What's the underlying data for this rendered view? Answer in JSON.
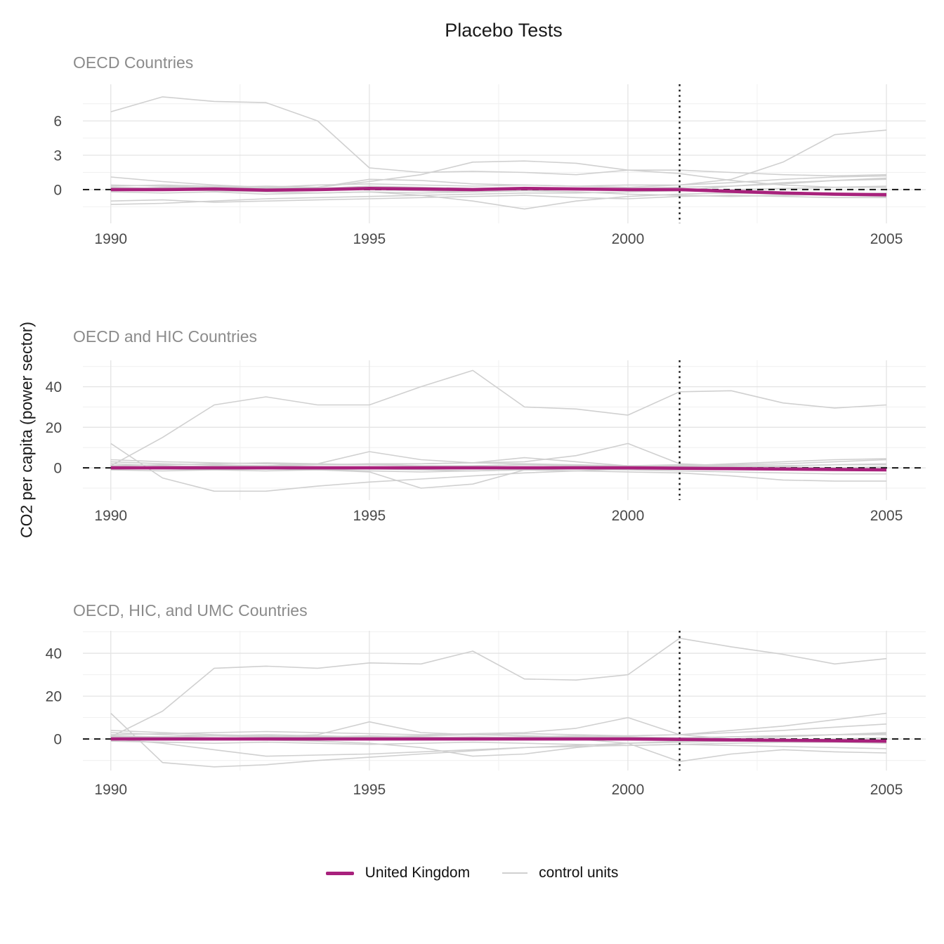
{
  "figure": {
    "title": "Placebo Tests",
    "y_axis_label": "CO2 per capita (power sector)"
  },
  "legend": {
    "items": [
      {
        "label": "United Kingdom",
        "color": "#A8217C"
      },
      {
        "label": "control units",
        "color": "#D0D0D0"
      }
    ]
  },
  "colors": {
    "treated": "#A8217C",
    "control": "#D0D0D0",
    "grid_major": "#E4E4E4",
    "grid_minor": "#F1F1F1",
    "reference_line": "#141414",
    "tick_label": "#4A4A4A",
    "panel_title": "#8B8B8B"
  },
  "chart_data": [
    {
      "type": "line",
      "title": "OECD Countries",
      "xlabel": "",
      "ylabel": "CO2 per capita (power sector)",
      "x": [
        1990,
        1991,
        1992,
        1993,
        1994,
        1995,
        1996,
        1997,
        1998,
        1999,
        2000,
        2001,
        2002,
        2003,
        2004,
        2005
      ],
      "xticks": [
        1990,
        1995,
        2000,
        2005
      ],
      "xticks_minor": [
        1992.5,
        1997.5,
        2002.5
      ],
      "yticks": [
        0,
        3,
        6
      ],
      "yticks_minor": [
        -1.5,
        1.5,
        4.5,
        7.5
      ],
      "xlim": [
        1989.46,
        2005.76
      ],
      "ylim": [
        -2.95,
        9.2
      ],
      "hline_y": 0,
      "vline_x": 2001,
      "grid": true,
      "series": [
        {
          "name": "United Kingdom",
          "role": "treated",
          "values": [
            0.0,
            0.0,
            0.05,
            -0.05,
            0.0,
            0.1,
            0.05,
            0.0,
            0.1,
            0.05,
            0.0,
            0.0,
            -0.15,
            -0.3,
            -0.4,
            -0.45
          ]
        },
        {
          "name": "control 1",
          "role": "control",
          "values": [
            6.8,
            8.1,
            7.7,
            7.6,
            6.0,
            1.9,
            1.5,
            1.6,
            1.5,
            1.3,
            1.7,
            1.4,
            0.8,
            0.4,
            0.2,
            0.2
          ]
        },
        {
          "name": "control 2",
          "role": "control",
          "values": [
            0.3,
            0.4,
            0.3,
            0.2,
            0.4,
            0.5,
            0.4,
            0.3,
            0.4,
            0.3,
            0.4,
            0.4,
            0.9,
            2.4,
            4.8,
            5.2
          ]
        },
        {
          "name": "control 3",
          "role": "control",
          "values": [
            0.2,
            0.1,
            0.2,
            0.1,
            0.2,
            0.7,
            1.3,
            2.4,
            2.5,
            2.3,
            1.7,
            1.7,
            1.5,
            1.3,
            1.2,
            1.3
          ]
        },
        {
          "name": "control 4",
          "role": "control",
          "values": [
            1.1,
            0.7,
            0.4,
            0.2,
            0.1,
            0.0,
            -0.1,
            -0.2,
            -0.1,
            0.0,
            0.1,
            0.2,
            0.3,
            0.5,
            0.8,
            1.0
          ]
        },
        {
          "name": "control 5",
          "role": "control",
          "values": [
            0.1,
            0.0,
            -0.1,
            -0.2,
            -0.3,
            -0.2,
            -0.5,
            -1.0,
            -1.7,
            -1.0,
            -0.6,
            -0.4,
            -0.3,
            -0.4,
            -0.5,
            -0.6
          ]
        },
        {
          "name": "control 6",
          "role": "control",
          "values": [
            -1.0,
            -0.9,
            -1.1,
            -1.0,
            -0.9,
            -0.8,
            -0.7,
            -0.6,
            -0.5,
            -0.7,
            -0.8,
            -0.6,
            -0.5,
            -0.6,
            -0.7,
            -0.7
          ]
        },
        {
          "name": "control 7",
          "role": "control",
          "values": [
            -1.3,
            -1.2,
            -1.0,
            -0.8,
            -0.7,
            -0.6,
            -0.5,
            -0.4,
            -0.3,
            -0.3,
            -0.2,
            -0.1,
            0.0,
            0.1,
            0.2,
            0.3
          ]
        },
        {
          "name": "control 8",
          "role": "control",
          "values": [
            0.4,
            0.3,
            0.2,
            0.3,
            0.2,
            0.9,
            0.8,
            0.5,
            0.4,
            0.3,
            0.2,
            0.4,
            0.6,
            0.9,
            1.1,
            1.2
          ]
        },
        {
          "name": "control 9",
          "role": "control",
          "values": [
            -0.2,
            -0.3,
            -0.2,
            -0.4,
            -0.3,
            -0.2,
            -0.3,
            -0.2,
            -0.1,
            -0.2,
            -0.4,
            -0.5,
            -0.6,
            -0.5,
            -0.4,
            -0.3
          ]
        },
        {
          "name": "control 10",
          "role": "control",
          "values": [
            0.0,
            0.2,
            0.1,
            0.0,
            0.1,
            0.3,
            0.2,
            0.1,
            0.2,
            0.1,
            0.0,
            -0.1,
            0.3,
            0.6,
            0.8,
            0.9
          ]
        }
      ]
    },
    {
      "type": "line",
      "title": "OECD and HIC Countries",
      "xlabel": "",
      "ylabel": "CO2 per capita (power sector)",
      "x": [
        1990,
        1991,
        1992,
        1993,
        1994,
        1995,
        1996,
        1997,
        1998,
        1999,
        2000,
        2001,
        2002,
        2003,
        2004,
        2005
      ],
      "xticks": [
        1990,
        1995,
        2000,
        2005
      ],
      "xticks_minor": [
        1992.5,
        1997.5,
        2002.5
      ],
      "yticks": [
        0,
        20,
        40
      ],
      "yticks_minor": [
        -10,
        10,
        30,
        50
      ],
      "xlim": [
        1989.46,
        2005.76
      ],
      "ylim": [
        -15.9,
        53
      ],
      "hline_y": 0,
      "vline_x": 2001,
      "grid": true,
      "series": [
        {
          "name": "United Kingdom",
          "role": "treated",
          "values": [
            0,
            0,
            0,
            0,
            0,
            0,
            0,
            0,
            0,
            0,
            0,
            -0.2,
            -0.4,
            -0.6,
            -0.8,
            -1.0
          ]
        },
        {
          "name": "control 1",
          "role": "control",
          "values": [
            1,
            15,
            31,
            35,
            31,
            31,
            40,
            48,
            30,
            29,
            26,
            37.5,
            38,
            32,
            29.5,
            31
          ]
        },
        {
          "name": "control 2",
          "role": "control",
          "values": [
            12,
            -5,
            -11.5,
            -11.5,
            -9,
            -7,
            -5.5,
            -4,
            -2.5,
            -1.5,
            -0.5,
            0,
            0.5,
            1,
            1.5,
            2
          ]
        },
        {
          "name": "control 3",
          "role": "control",
          "values": [
            3,
            2,
            1.5,
            1,
            2,
            8,
            4,
            2.5,
            2,
            1.5,
            1,
            0.8,
            0.5,
            0.3,
            0.2,
            0.1
          ]
        },
        {
          "name": "control 4",
          "role": "control",
          "values": [
            2,
            1,
            0.5,
            0,
            -1,
            -2,
            -10,
            -8,
            -1,
            0,
            0.5,
            1,
            1.5,
            2,
            3,
            4
          ]
        },
        {
          "name": "control 5",
          "role": "control",
          "values": [
            0.5,
            0.5,
            1,
            1,
            1.5,
            2,
            2,
            2.5,
            5,
            3,
            1,
            0.5,
            0,
            -0.5,
            -1,
            -1
          ]
        },
        {
          "name": "control 6",
          "role": "control",
          "values": [
            1,
            1.5,
            2,
            2.5,
            2,
            1.5,
            2,
            2.5,
            3,
            6,
            12,
            2,
            1,
            0.5,
            0,
            0.5
          ]
        },
        {
          "name": "control 7",
          "role": "control",
          "values": [
            0,
            -0.5,
            -1,
            -1.5,
            -1,
            -0.5,
            -1,
            -1.5,
            -1,
            -1.5,
            -2,
            -2.5,
            -4,
            -6,
            -6.5,
            -6.5
          ]
        },
        {
          "name": "control 8",
          "role": "control",
          "values": [
            0.5,
            0,
            0.5,
            1,
            0.5,
            0,
            0.5,
            1,
            1.5,
            1,
            0.5,
            1,
            2,
            3,
            4,
            4.5
          ]
        },
        {
          "name": "control 9",
          "role": "control",
          "values": [
            4,
            3,
            2.5,
            2,
            1.5,
            1.5,
            1,
            1,
            1.5,
            1,
            1,
            1.5,
            1,
            1,
            1.5,
            1.5
          ]
        },
        {
          "name": "control 10",
          "role": "control",
          "values": [
            -1,
            -1.5,
            -1,
            -0.5,
            -1,
            -1.5,
            -2,
            -1.5,
            -1,
            -0.5,
            -1,
            -1.5,
            -2,
            -2.5,
            -3,
            -3
          ]
        }
      ]
    },
    {
      "type": "line",
      "title": "OECD, HIC, and UMC Countries",
      "xlabel": "",
      "ylabel": "CO2 per capita (power sector)",
      "x": [
        1990,
        1991,
        1992,
        1993,
        1994,
        1995,
        1996,
        1997,
        1998,
        1999,
        2000,
        2001,
        2002,
        2003,
        2004,
        2005
      ],
      "xticks": [
        1990,
        1995,
        2000,
        2005
      ],
      "xticks_minor": [
        1992.5,
        1997.5,
        2002.5
      ],
      "yticks": [
        0,
        20,
        40
      ],
      "yticks_minor": [
        -10,
        10,
        30,
        50
      ],
      "xlim": [
        1989.46,
        2005.76
      ],
      "ylim": [
        -14.7,
        50.5
      ],
      "hline_y": 0,
      "vline_x": 2001,
      "grid": true,
      "series": [
        {
          "name": "United Kingdom",
          "role": "treated",
          "values": [
            0,
            0,
            0,
            0,
            0,
            0,
            0,
            0,
            0,
            0,
            0,
            -0.2,
            -0.4,
            -0.6,
            -0.8,
            -1.0
          ]
        },
        {
          "name": "control 1",
          "role": "control",
          "values": [
            1,
            13,
            33,
            34,
            33,
            35.5,
            35,
            41,
            28,
            27.5,
            30,
            47,
            43,
            39.5,
            35,
            37.5
          ]
        },
        {
          "name": "control 2",
          "role": "control",
          "values": [
            12,
            -11,
            -13,
            -12,
            -10,
            -8.5,
            -7,
            -5.5,
            -4,
            -3,
            -2,
            -1.5,
            -1,
            -0.5,
            0,
            0.5
          ]
        },
        {
          "name": "control 3",
          "role": "control",
          "values": [
            0,
            -2,
            -5,
            -8,
            -7.5,
            -7,
            -6,
            -5,
            -4,
            -3.5,
            -3,
            -2.5,
            -2,
            -1.5,
            -1.5,
            -1
          ]
        },
        {
          "name": "control 4",
          "role": "control",
          "values": [
            3,
            2,
            1.5,
            1,
            2,
            8,
            3,
            2,
            1.5,
            1,
            0.5,
            0.5,
            1,
            1.5,
            2,
            2.5
          ]
        },
        {
          "name": "control 5",
          "role": "control",
          "values": [
            1,
            0.5,
            0,
            -0.5,
            -1,
            -2,
            -4,
            -8,
            -7,
            -4,
            -2,
            -1,
            0,
            1,
            2,
            3
          ]
        },
        {
          "name": "control 6",
          "role": "control",
          "values": [
            2,
            2.5,
            3,
            3.5,
            3,
            2.5,
            2,
            2.5,
            3,
            5,
            10,
            2,
            0,
            -1,
            -1.5,
            -2
          ]
        },
        {
          "name": "control 7",
          "role": "control",
          "values": [
            0.5,
            1,
            1.5,
            1,
            0.5,
            0,
            0.5,
            1,
            0.5,
            0,
            -2,
            -10.5,
            -7,
            -5,
            -6,
            -6.5
          ]
        },
        {
          "name": "control 8",
          "role": "control",
          "values": [
            0.5,
            1,
            0.5,
            0,
            0.5,
            1,
            0.5,
            0,
            0.5,
            1,
            1.5,
            2,
            4,
            6,
            9,
            12
          ]
        },
        {
          "name": "control 9",
          "role": "control",
          "values": [
            1.5,
            1,
            1.5,
            2,
            1.5,
            1,
            1.5,
            2,
            2.5,
            2,
            1.5,
            2,
            3,
            4,
            5.5,
            7
          ]
        },
        {
          "name": "control 10",
          "role": "control",
          "values": [
            4,
            3,
            2,
            1.5,
            1,
            1.5,
            1,
            0.5,
            1,
            1.5,
            1,
            0.5,
            1,
            1.5,
            2,
            2
          ]
        },
        {
          "name": "control 11",
          "role": "control",
          "values": [
            -1,
            -1.5,
            -2,
            -1.5,
            -2,
            -2.5,
            -2,
            -1.5,
            -2,
            -2.5,
            -3,
            -2.5,
            -3,
            -3.5,
            -4,
            -4.5
          ]
        }
      ]
    }
  ]
}
